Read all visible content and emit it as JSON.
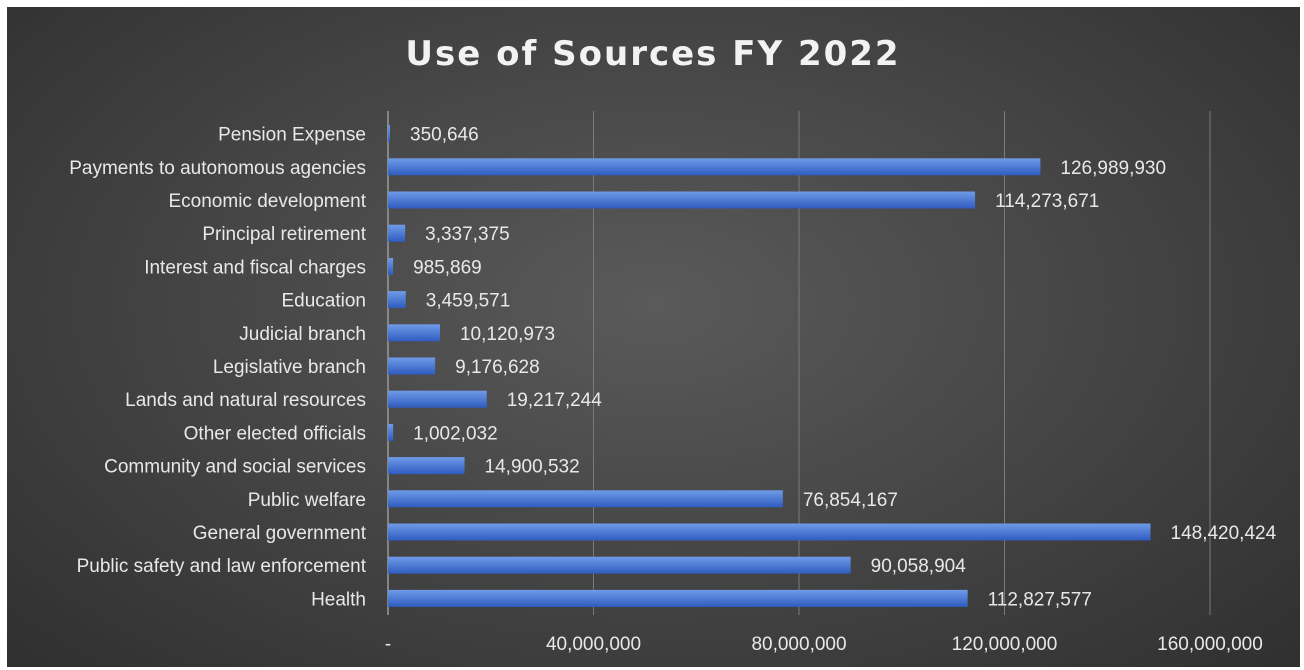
{
  "chart_data": {
    "type": "bar",
    "orientation": "horizontal",
    "title": "Use of Sources FY 2022",
    "categories": [
      "Pension Expense",
      "Payments to autonomous agencies",
      "Economic development",
      "Principal retirement",
      "Interest and fiscal charges",
      "Education",
      "Judicial branch",
      "Legislative branch",
      "Lands and natural resources",
      "Other elected officials",
      "Community and social services",
      "Public welfare",
      "General government",
      "Public safety and law enforcement",
      "Health"
    ],
    "values": [
      350646,
      126989930,
      114273671,
      3337375,
      985869,
      3459571,
      10120973,
      9176628,
      19217244,
      1002032,
      14900532,
      76854167,
      148420424,
      90058904,
      112827577
    ],
    "value_labels": [
      "350,646",
      "126,989,930",
      "114,273,671",
      "3,337,375",
      "985,869",
      "3,459,571",
      "10,120,973",
      "9,176,628",
      "19,217,244",
      "1,002,032",
      "14,900,532",
      "76,854,167",
      "148,420,424",
      "90,058,904",
      "112,827,577"
    ],
    "xlim": [
      0,
      160000000
    ],
    "x_ticks": [
      0,
      40000000,
      80000000,
      120000000,
      160000000
    ],
    "x_tick_labels": [
      "-",
      "40,000,000",
      "80,000,000",
      "120,000,000",
      "160,000,000"
    ],
    "xlabel": "",
    "ylabel": "",
    "grid": true,
    "legend": "none",
    "colors": {
      "bar_top": "#6f9be8",
      "bar_bottom": "#2f5cbf",
      "text": "#e8e8e8",
      "gridline": "#7a7a7a"
    }
  }
}
